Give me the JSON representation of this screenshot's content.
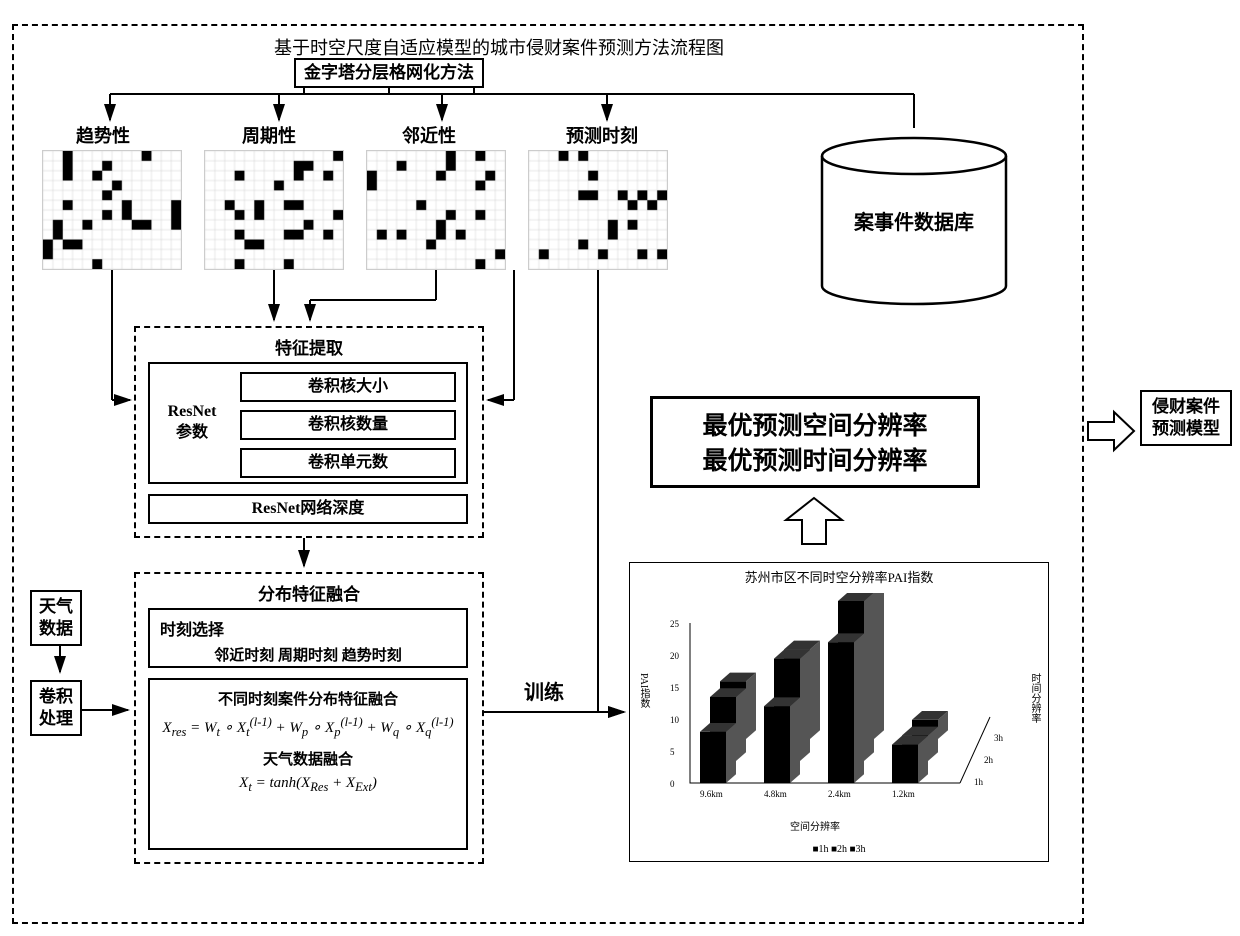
{
  "title": "基于时空尺度自适应模型的城市侵财案件预测方法流程图",
  "pyramid": "金字塔分层格网化方法",
  "branches": {
    "trend": "趋势性",
    "periodic": "周期性",
    "proximity": "邻近性",
    "predict_time": "预测时刻"
  },
  "database": "案事件数据库",
  "feature_extract": {
    "title": "特征提取",
    "resnet_label": "ResNet\n参数",
    "params": [
      "卷积核大小",
      "卷积核数量",
      "卷积单元数"
    ],
    "depth": "ResNet网络深度"
  },
  "fusion": {
    "title": "分布特征融合",
    "time_select_title": "时刻选择",
    "time_select_items": "邻近时刻 周期时刻 趋势时刻",
    "detail_title1": "不同时刻案件分布特征融合",
    "formula1": "X_res = W_t ∘ X_t^(l-1) + W_p ∘ X_p^(l-1) + W_q ∘ X_q^(l-1)",
    "detail_title2": "天气数据融合",
    "formula2": "X_t = tanh(X_Res + X_Ext)"
  },
  "weather": "天气\n数据",
  "conv_proc": "卷积\n处理",
  "train_label": "训练",
  "optimal": {
    "line1": "最优预测空间分辨率",
    "line2": "最优预测时间分辨率"
  },
  "chart": {
    "title": "苏州市区不同时空分辨率PAI指数",
    "y_label": "PAI指数",
    "x_label": "空间分辨率",
    "z_label": "时间分辨率",
    "x_ticks": [
      "9.6km",
      "4.8km",
      "2.4km",
      "1.2km"
    ],
    "z_ticks": [
      "1h",
      "2h",
      "3h"
    ],
    "y_ticks": [
      0,
      5,
      10,
      15,
      20,
      25
    ],
    "legend": "■1h ■2h ■3h",
    "data": {
      "1h": [
        8,
        12,
        22,
        6
      ],
      "2h": [
        10,
        16,
        25,
        4
      ],
      "3h": [
        9,
        14,
        23,
        3
      ]
    },
    "bar_color": "#000000",
    "background": "#ffffff"
  },
  "output": "侵财案件\n预测模型",
  "grid_pattern": {
    "rows": 12,
    "cols": 14,
    "fill_color": "#000000",
    "line_color": "#cccccc",
    "density": 0.12
  },
  "colors": {
    "line": "#000000",
    "dashed": "#000000",
    "background": "#ffffff"
  }
}
